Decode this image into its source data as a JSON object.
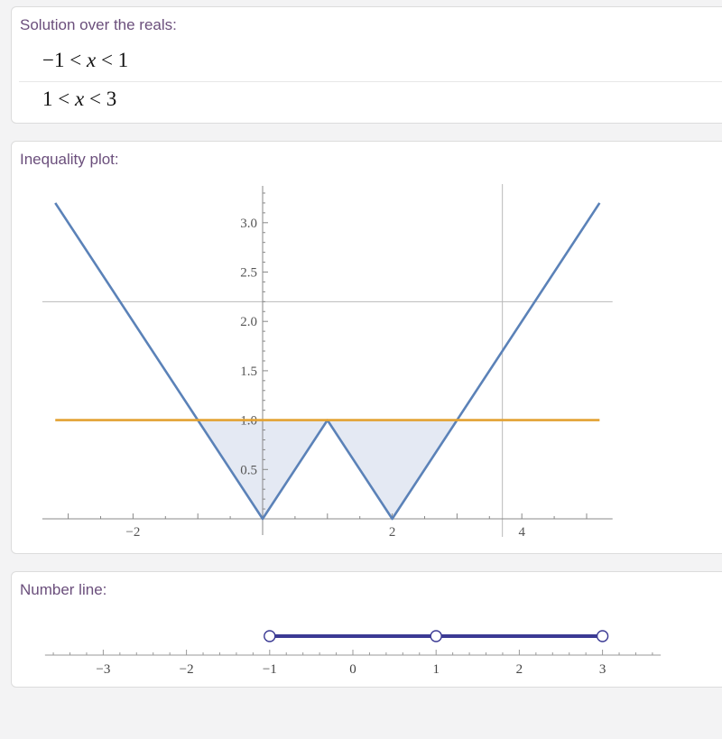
{
  "solution": {
    "title": "Solution over the reals:",
    "rows": [
      {
        "left": "−1",
        "lt1": "<",
        "var": "x",
        "lt2": "<",
        "right": "1"
      },
      {
        "left": "1",
        "lt1": "<",
        "var": "x",
        "lt2": "<",
        "right": "3"
      }
    ]
  },
  "inequality_plot": {
    "title": "Inequality plot:"
  },
  "number_line": {
    "title": "Number line:"
  },
  "chart_data": [
    {
      "type": "line",
      "title": "",
      "xlabel": "",
      "ylabel": "",
      "xlim": [
        -3.4,
        5.4
      ],
      "ylim": [
        0,
        3.3
      ],
      "x_ticks": [
        "−2",
        "2",
        "4"
      ],
      "y_ticks": [
        "0.5",
        "1.0",
        "1.5",
        "2.0",
        "2.5",
        "3.0"
      ],
      "series": [
        {
          "color": "#5b82b8",
          "x": [
            -3.2,
            0,
            1,
            2,
            5.2
          ],
          "y": [
            3.2,
            0,
            1,
            0,
            3.2
          ]
        },
        {
          "color": "#e3a232",
          "x": [
            -3.2,
            5.2
          ],
          "y": [
            1,
            1
          ]
        }
      ],
      "filled_regions": [
        {
          "x": [
            -1,
            0,
            1
          ],
          "y_low": [
            1,
            0,
            1
          ],
          "y_high": [
            1,
            1,
            1
          ]
        },
        {
          "x": [
            1,
            2,
            3
          ],
          "y_low": [
            1,
            0,
            1
          ],
          "y_high": [
            1,
            1,
            1
          ]
        }
      ],
      "fill_color": "#e4e9f3",
      "reference_lines": {
        "x": [
          3.7
        ],
        "y": [
          2.2
        ]
      },
      "grid": false
    },
    {
      "type": "scatter",
      "title": "",
      "xlim": [
        -3.7,
        3.7
      ],
      "x_ticks": [
        "−3",
        "−2",
        "−1",
        "0",
        "1",
        "2",
        "3"
      ],
      "segments": [
        [
          -1,
          1
        ],
        [
          1,
          3
        ]
      ],
      "open_points": [
        -1,
        1,
        3
      ],
      "color": "#3b3a94"
    }
  ]
}
